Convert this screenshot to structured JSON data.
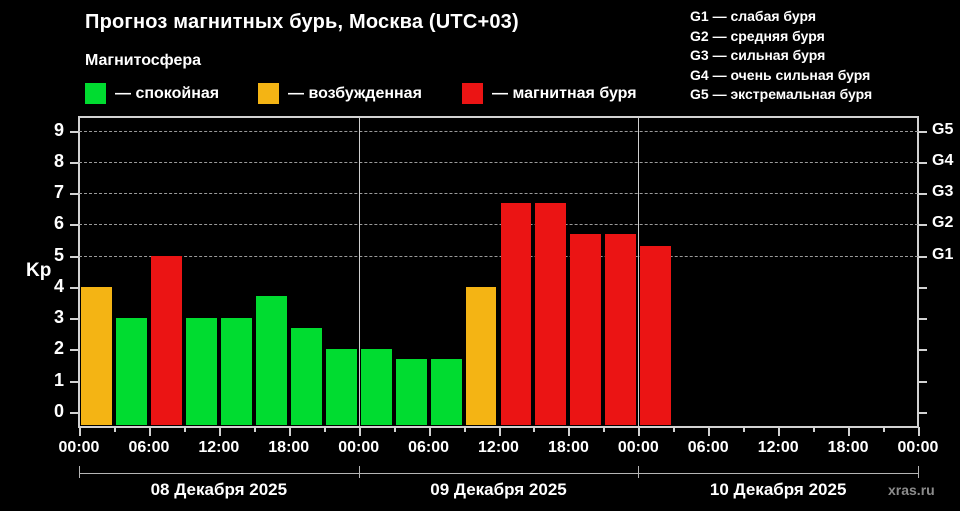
{
  "page": {
    "background": "#000000",
    "watermark": "xras.ru"
  },
  "header": {
    "title": "Прогноз магнитных бурь, Москва (UTC+03)",
    "subtitle": "Магнитосфера",
    "legend": [
      {
        "label": "— спокойная",
        "color": "#00DC30"
      },
      {
        "label": "— возбужденная",
        "color": "#F4B414"
      },
      {
        "label": "— магнитная буря",
        "color": "#EB1414"
      }
    ],
    "g_legend": [
      "G1 — слабая буря",
      "G2 — средняя буря",
      "G3 — сильная буря",
      "G4 — очень сильная буря",
      "G5 — экстремальная буря"
    ]
  },
  "chart_data": {
    "type": "bar",
    "title": "Прогноз магнитных бурь, Москва (UTC+03)",
    "subtitle": "Магнитосфера",
    "ylabel": "Kp",
    "ylim": [
      0,
      9.4
    ],
    "yticks": [
      0,
      1,
      2,
      3,
      4,
      5,
      6,
      7,
      8,
      9
    ],
    "gridlines_at": [
      5,
      6,
      7,
      8,
      9
    ],
    "grid_style": "dashed",
    "interval_hours": 3,
    "x_tick_labels": [
      "00:00",
      "06:00",
      "12:00",
      "18:00",
      "00:00",
      "06:00",
      "12:00",
      "18:00",
      "00:00",
      "06:00",
      "12:00",
      "18:00",
      "00:00"
    ],
    "right_axis": [
      {
        "kp": 5,
        "label": "G1"
      },
      {
        "kp": 6,
        "label": "G2"
      },
      {
        "kp": 7,
        "label": "G3"
      },
      {
        "kp": 8,
        "label": "G4"
      },
      {
        "kp": 9,
        "label": "G5"
      }
    ],
    "days": [
      {
        "date": "08 Декабря 2025",
        "values": [
          4,
          3,
          5,
          3,
          3,
          3.7,
          2.7,
          2
        ]
      },
      {
        "date": "09 Декабря 2025",
        "values": [
          2,
          1.7,
          1.7,
          4,
          6.7,
          6.7,
          5.7,
          5.7
        ]
      },
      {
        "date": "10 Декабря 2025",
        "values": [
          5.3
        ]
      }
    ],
    "colors": {
      "quiet": "#00DC30",
      "active": "#F4B414",
      "storm": "#EB1414"
    },
    "color_thresholds": {
      "active_min_kp": 4,
      "storm_min_kp": 5
    },
    "legend_position": "top"
  }
}
